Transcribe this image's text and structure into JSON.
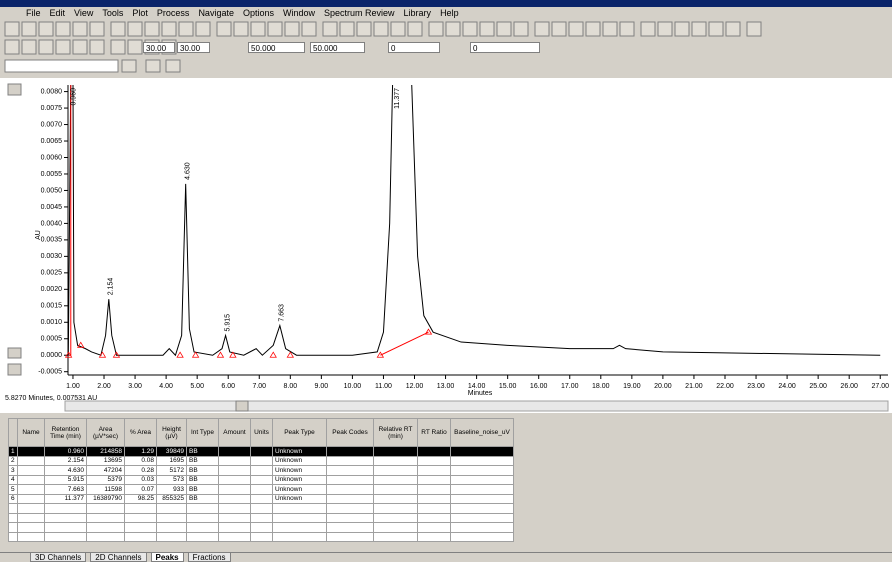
{
  "window": {
    "menu": [
      "File",
      "Edit",
      "View",
      "Tools",
      "Plot",
      "Process",
      "Navigate",
      "Options",
      "Window",
      "Spectrum Review",
      "Library",
      "Help"
    ],
    "toolbar_fields": [
      "30.00",
      "30.00",
      "50.000",
      "50.000",
      "0",
      "0"
    ]
  },
  "chart_data": {
    "type": "line",
    "y_label": "AU",
    "x_label": "Minutes",
    "status": "5.8270 Minutes, 0.007531 AU",
    "color": "#000000",
    "x": [
      0.85,
      0.93,
      1.0,
      1.03,
      1.15,
      1.4,
      1.6,
      1.9,
      2.05,
      2.154,
      2.25,
      2.4,
      3.0,
      3.9,
      4.1,
      4.3,
      4.5,
      4.63,
      4.75,
      4.9,
      5.5,
      5.8,
      5.915,
      6.05,
      6.5,
      6.9,
      7.1,
      7.45,
      7.663,
      7.85,
      8.2,
      10.0,
      10.8,
      11.0,
      11.2,
      11.3,
      11.9,
      12.1,
      12.3,
      12.6,
      13.5,
      15.0,
      17.0,
      18.4,
      18.6,
      18.8,
      20.0,
      27.0
    ],
    "values": [
      0,
      0.0085,
      0.0085,
      0.001,
      0.0003,
      0.0002,
      0.0001,
      0,
      0.0006,
      0.0017,
      0.0006,
      0,
      0,
      0,
      0.0002,
      0,
      0.0006,
      0.0052,
      0.0008,
      0.0001,
      0,
      0.0002,
      0.0006,
      0.0001,
      0,
      0.0002,
      0,
      0.0003,
      0.0009,
      0.0002,
      0,
      0,
      0.0001,
      0.0007,
      0.004,
      0.0085,
      0.0085,
      0.003,
      0.0012,
      0.0007,
      0.0004,
      0.0003,
      0.0002,
      0.0002,
      0.0003,
      0.0002,
      0.0001,
      0
    ],
    "xlim": [
      0.84,
      27.25
    ],
    "ylim": [
      -0.0006,
      0.0082
    ],
    "xticks": [
      {
        "value": 1,
        "label": "1.00"
      },
      {
        "value": 2,
        "label": "2.00"
      },
      {
        "value": 3,
        "label": "3.00"
      },
      {
        "value": 4,
        "label": "4.00"
      },
      {
        "value": 5,
        "label": "5.00"
      },
      {
        "value": 6,
        "label": "6.00"
      },
      {
        "value": 7,
        "label": "7.00"
      },
      {
        "value": 8,
        "label": "8.00"
      },
      {
        "value": 9,
        "label": "9.00"
      },
      {
        "value": 10,
        "label": "10.00"
      },
      {
        "value": 11,
        "label": "11.00"
      },
      {
        "value": 12,
        "label": "12.00"
      },
      {
        "value": 13,
        "label": "13.00"
      },
      {
        "value": 14,
        "label": "14.00"
      },
      {
        "value": 15,
        "label": "15.00"
      },
      {
        "value": 16,
        "label": "16.00"
      },
      {
        "value": 17,
        "label": "17.00"
      },
      {
        "value": 18,
        "label": "18.00"
      },
      {
        "value": 19,
        "label": "19.00"
      },
      {
        "value": 20,
        "label": "20.00"
      },
      {
        "value": 21,
        "label": "21.00"
      },
      {
        "value": 22,
        "label": "22.00"
      },
      {
        "value": 23,
        "label": "23.00"
      },
      {
        "value": 24,
        "label": "24.00"
      },
      {
        "value": 25,
        "label": "25.00"
      },
      {
        "value": 26,
        "label": "26.00"
      },
      {
        "value": 27,
        "label": "27.00"
      }
    ],
    "yticks": [
      {
        "value": -0.0005,
        "label": "-0.0005"
      },
      {
        "value": 0,
        "label": "0.0000"
      },
      {
        "value": 0.0005,
        "label": "0.0005"
      },
      {
        "value": 0.001,
        "label": "0.0010"
      },
      {
        "value": 0.0015,
        "label": "0.0015"
      },
      {
        "value": 0.002,
        "label": "0.0020"
      },
      {
        "value": 0.0025,
        "label": "0.0025"
      },
      {
        "value": 0.003,
        "label": "0.0030"
      },
      {
        "value": 0.0035,
        "label": "0.0035"
      },
      {
        "value": 0.004,
        "label": "0.0040"
      },
      {
        "value": 0.0045,
        "label": "0.0045"
      },
      {
        "value": 0.005,
        "label": "0.0050"
      },
      {
        "value": 0.0055,
        "label": "0.0055"
      },
      {
        "value": 0.006,
        "label": "0.0060"
      },
      {
        "value": 0.0065,
        "label": "0.0065"
      },
      {
        "value": 0.007,
        "label": "0.0070"
      },
      {
        "value": 0.0075,
        "label": "0.0075"
      },
      {
        "value": 0.008,
        "label": "0.0080"
      }
    ],
    "peaks": [
      {
        "x": 0.96,
        "label": "0.960"
      },
      {
        "x": 2.154,
        "label": "2.154"
      },
      {
        "x": 4.63,
        "label": "4.630"
      },
      {
        "x": 5.915,
        "label": "5.915"
      },
      {
        "x": 7.663,
        "label": "7.663"
      },
      {
        "x": 11.377,
        "label": "11.377"
      }
    ],
    "integration": {
      "color": "#ff0000",
      "marker_x": [
        0.86,
        1.25,
        1.95,
        2.4,
        4.45,
        4.95,
        5.75,
        6.15,
        7.45,
        8.0,
        10.9,
        12.45
      ],
      "marker_y": [
        0,
        0.0003,
        0,
        0,
        0,
        0,
        0,
        0,
        0,
        0,
        0,
        0.0007
      ],
      "baseline_x": [
        0.86,
        0.93,
        0.93,
        null,
        10.9,
        12.45
      ],
      "baseline_y": [
        0,
        0,
        0.0082,
        null,
        0,
        0.0007
      ]
    }
  },
  "table": {
    "headers": [
      "Name",
      "Retention Time (min)",
      "Area (µV*sec)",
      "% Area",
      "Height (µV)",
      "Int Type",
      "Amount",
      "Units",
      "Peak Type",
      "Peak Codes",
      "Relative RT (min)",
      "RT Ratio",
      "Baseline_noise_uV"
    ],
    "rows": [
      {
        "num": "1",
        "rt": "0.960",
        "area": "214858",
        "pct": "1.29",
        "height": "39849",
        "int_type": "BB",
        "peak_type": "Unknown"
      },
      {
        "num": "2",
        "rt": "2.154",
        "area": "13695",
        "pct": "0.08",
        "height": "1695",
        "int_type": "BB",
        "peak_type": "Unknown"
      },
      {
        "num": "3",
        "rt": "4.630",
        "area": "47204",
        "pct": "0.28",
        "height": "5172",
        "int_type": "BB",
        "peak_type": "Unknown"
      },
      {
        "num": "4",
        "rt": "5.915",
        "area": "5379",
        "pct": "0.03",
        "height": "573",
        "int_type": "BB",
        "peak_type": "Unknown"
      },
      {
        "num": "5",
        "rt": "7.663",
        "area": "11598",
        "pct": "0.07",
        "height": "933",
        "int_type": "BB",
        "peak_type": "Unknown"
      },
      {
        "num": "6",
        "rt": "11.377",
        "area": "16389790",
        "pct": "98.25",
        "height": "855325",
        "int_type": "BB",
        "peak_type": "Unknown"
      }
    ]
  },
  "tabs": [
    "3D Channels",
    "2D Channels",
    "Peaks",
    "Fractions"
  ]
}
